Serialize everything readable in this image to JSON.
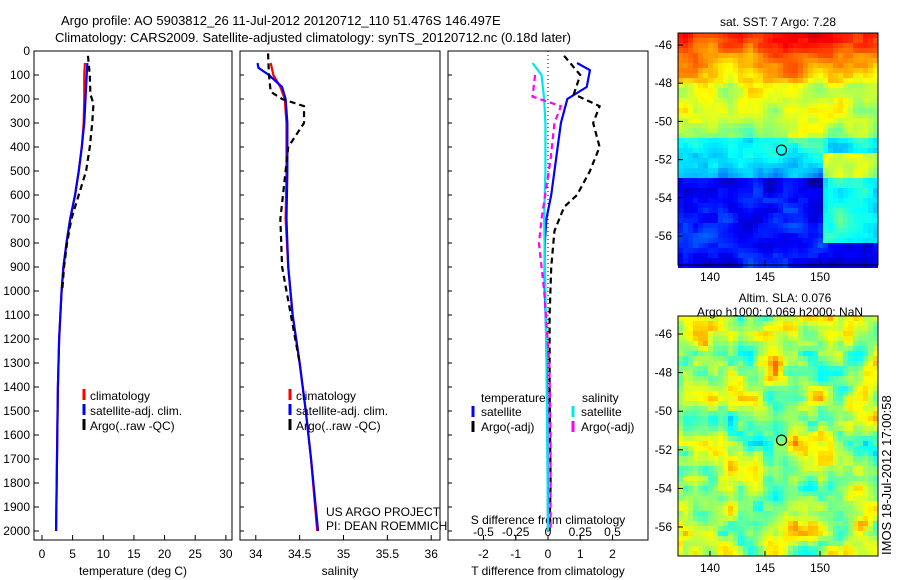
{
  "title_line1": "Argo profile: AO 5903812_26 11-Jul-2012 20120712_110 51.476S 146.497E",
  "title_line2": "Climatology: CARS2009. Satellite-adjusted climatology: synTS_20120712.nc (0.18d later)",
  "project": "US ARGO PROJECT",
  "pi": "PI: DEAN ROEMMICH",
  "stamp": "IMOS 18-Jul-2012 17:00:58",
  "colors": {
    "clim": "#ff0000",
    "sat": "#0000ff",
    "argo": "#000000",
    "sal_sat": "#00e5ee",
    "sal_argo": "#ff00ff"
  },
  "chart_data": [
    {
      "type": "line",
      "id": "temp",
      "xlabel": "temperature (deg C)",
      "xlim": [
        -1.3,
        31
      ],
      "ylim": [
        0,
        2060
      ],
      "yticks": [
        0,
        100,
        200,
        300,
        400,
        500,
        600,
        700,
        800,
        900,
        1000,
        1100,
        1200,
        1300,
        1400,
        1500,
        1600,
        1700,
        1800,
        1900,
        2000
      ],
      "xticks": [
        0,
        5,
        10,
        15,
        20,
        25,
        30
      ],
      "legend": [
        "climatology",
        "satellite-adj. clim.",
        "Argo(..raw -QC)"
      ],
      "series": [
        {
          "name": "climatology",
          "color": "#ff0000",
          "depth": [
            50,
            100,
            200,
            300,
            400,
            500,
            600,
            700,
            800,
            900,
            1000,
            1200,
            1400,
            1600,
            1800,
            2000
          ],
          "values": [
            7.0,
            6.9,
            6.9,
            6.8,
            6.5,
            6.0,
            5.4,
            4.6,
            4.0,
            3.5,
            3.2,
            2.8,
            2.6,
            2.5,
            2.4,
            2.3
          ]
        },
        {
          "name": "satellite-adj. clim.",
          "color": "#0000ff",
          "depth": [
            50,
            100,
            200,
            300,
            400,
            500,
            600,
            700,
            800,
            900,
            1000,
            1200,
            1400,
            1600,
            1800,
            2000
          ],
          "values": [
            7.4,
            7.3,
            7.1,
            6.9,
            6.5,
            6.0,
            5.4,
            4.6,
            4.0,
            3.5,
            3.2,
            2.8,
            2.6,
            2.5,
            2.4,
            2.3
          ]
        },
        {
          "name": "Argo(..raw -QC)",
          "color": "#000000",
          "dash": true,
          "depth": [
            20,
            100,
            180,
            220,
            300,
            400,
            500,
            600,
            700,
            800,
            900,
            1000
          ],
          "values": [
            7.5,
            7.8,
            7.9,
            8.4,
            8.2,
            7.8,
            7.2,
            6.0,
            4.8,
            4.1,
            3.6,
            3.3
          ]
        }
      ]
    },
    {
      "type": "line",
      "id": "sal",
      "xlabel": "salinity",
      "xlim": [
        33.82,
        36.1
      ],
      "ylim": [
        0,
        2060
      ],
      "xticks": [
        34,
        34.5,
        35,
        35.5,
        36
      ],
      "legend": [
        "climatology",
        "satellite-adj. clim.",
        "Argo(..raw -QC)"
      ],
      "series": [
        {
          "name": "climatology",
          "color": "#ff0000",
          "depth": [
            50,
            100,
            150,
            200,
            300,
            500,
            700,
            900,
            1100,
            1300,
            1500,
            1700,
            2000
          ],
          "values": [
            34.17,
            34.2,
            34.28,
            34.33,
            34.35,
            34.35,
            34.34,
            34.37,
            34.42,
            34.5,
            34.57,
            34.63,
            34.7
          ]
        },
        {
          "name": "satellite-adj. clim.",
          "color": "#0000ff",
          "depth": [
            50,
            70,
            100,
            150,
            200,
            300,
            500,
            700,
            900,
            1100,
            1300,
            1500,
            1700,
            2000
          ],
          "values": [
            34.02,
            34.03,
            34.15,
            34.3,
            34.34,
            34.36,
            34.36,
            34.35,
            34.37,
            34.42,
            34.5,
            34.57,
            34.63,
            34.71
          ]
        },
        {
          "name": "Argo(..raw -QC)",
          "color": "#000000",
          "dash": true,
          "depth": [
            10,
            100,
            170,
            200,
            230,
            300,
            400,
            500,
            700,
            900,
            1100,
            1300
          ],
          "values": [
            34.14,
            34.15,
            34.17,
            34.3,
            34.55,
            34.55,
            34.37,
            34.34,
            34.28,
            34.3,
            34.4,
            34.5
          ]
        }
      ]
    },
    {
      "type": "line",
      "id": "diff",
      "xlabel": "T difference from climatology",
      "x2label": "S difference from climatology",
      "xlim": [
        -3.1,
        3.1
      ],
      "ylim": [
        0,
        2060
      ],
      "xticks": [
        -2,
        -1,
        0,
        1,
        2
      ],
      "x2ticks": [
        -0.5,
        -0.25,
        0,
        0.25,
        0.5
      ],
      "legend_groups": [
        "temperature",
        "salinity"
      ],
      "legend": [
        "satellite",
        "Argo(-adj)",
        "satellite",
        "Argo(-adj)"
      ],
      "series": [
        {
          "name": "T satellite",
          "color": "#0000ff",
          "scale": "T",
          "depth": [
            50,
            80,
            150,
            200,
            300,
            400,
            500,
            600,
            700,
            800,
            1000,
            1200,
            1500,
            2000
          ],
          "values": [
            0.9,
            1.3,
            1.2,
            0.6,
            0.4,
            0.3,
            0.2,
            0.1,
            -0.05,
            -0.1,
            -0.1,
            -0.05,
            -0.02,
            0
          ]
        },
        {
          "name": "T Argo",
          "color": "#000000",
          "scale": "T",
          "dash": true,
          "depth": [
            20,
            100,
            180,
            230,
            300,
            400,
            500,
            600,
            650,
            750,
            900,
            1100,
            1400,
            1800,
            2000
          ],
          "values": [
            0.5,
            1.0,
            0.8,
            1.6,
            1.4,
            1.6,
            1.3,
            0.9,
            0.5,
            0.2,
            0.1,
            0.05,
            0.05,
            0.08,
            0.05
          ]
        },
        {
          "name": "S satellite",
          "color": "#00e5ee",
          "scale": "S",
          "depth": [
            50,
            100,
            200,
            300,
            500,
            700,
            1000,
            1400,
            2000
          ],
          "values": [
            -0.12,
            -0.05,
            -0.03,
            -0.02,
            -0.02,
            -0.03,
            -0.02,
            -0.01,
            0
          ]
        },
        {
          "name": "S Argo",
          "color": "#ff00ff",
          "scale": "S",
          "dash": true,
          "depth": [
            100,
            190,
            230,
            300,
            450,
            700,
            800,
            1000,
            1300,
            1600,
            2000
          ],
          "values": [
            -0.1,
            -0.12,
            0.1,
            0.05,
            0.02,
            -0.05,
            -0.07,
            -0.03,
            0.01,
            0.02,
            0.02
          ]
        }
      ]
    },
    {
      "type": "heatmap",
      "id": "sst",
      "title": "sat. SST: 7 Argo: 7.28",
      "lon": [
        138.5,
        154.5
      ],
      "lat": [
        -57.3,
        -45.3
      ],
      "xticks": [
        140,
        145,
        150
      ],
      "yticks": [
        -46,
        -48,
        -50,
        -52,
        -54,
        -56
      ],
      "marker": [
        146.5,
        -51.5
      ]
    },
    {
      "type": "heatmap",
      "id": "sla",
      "title": "Altim. SLA: 0.076",
      "subtitle": "Argo h1000: 0.069 h2000: NaN",
      "lon": [
        138.5,
        154.5
      ],
      "lat": [
        -57.5,
        -45.3
      ],
      "xticks": [
        140,
        145,
        150
      ],
      "yticks": [
        -46,
        -48,
        -50,
        -52,
        -54,
        -56
      ],
      "marker": [
        146.5,
        -51.5
      ]
    }
  ]
}
